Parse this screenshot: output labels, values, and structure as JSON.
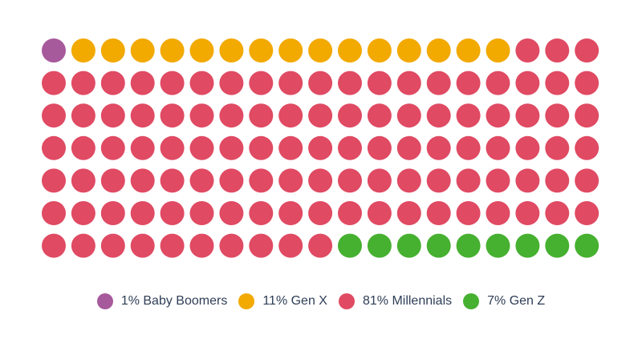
{
  "chart_data": {
    "type": "waffle",
    "columns": 19,
    "rows": 7,
    "total_dots": 133,
    "series": [
      {
        "name": "Baby Boomers",
        "percent": 1,
        "dots": 1,
        "color": "#a65a9c",
        "label": "1% Baby Boomers"
      },
      {
        "name": "Gen X",
        "percent": 11,
        "dots": 15,
        "color": "#f2a900",
        "label": "11% Gen X"
      },
      {
        "name": "Millennials",
        "percent": 81,
        "dots": 108,
        "color": "#e04a63",
        "label": "81% Millennials"
      },
      {
        "name": "Gen Z",
        "percent": 7,
        "dots": 9,
        "color": "#46b030",
        "label": "7% Gen Z"
      }
    ],
    "legend_position": "bottom-center"
  }
}
